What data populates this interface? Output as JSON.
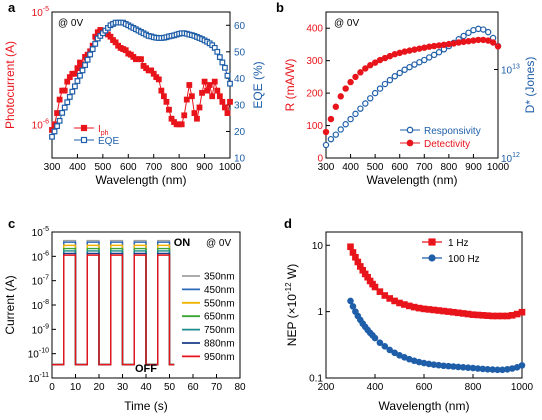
{
  "chart_data": [
    {
      "panel": "a",
      "type": "line",
      "annotation": "@ 0V",
      "xlabel": "Wavelength (nm)",
      "ylabel_left": "Photocurrent (A)",
      "ylabel_right": "EQE (%)",
      "xlim": [
        300,
        1000
      ],
      "xticks": [
        "300",
        "400",
        "500",
        "600",
        "700",
        "800",
        "900",
        "1000"
      ],
      "ylim_left_log": [
        -6.3,
        -5
      ],
      "yticks_left": [
        {
          "exp": "-5",
          "label_base": "10"
        },
        {
          "exp": "-6",
          "label_base": "10"
        }
      ],
      "ylim_right": [
        10,
        65
      ],
      "yticks_right": [
        "10",
        "20",
        "30",
        "40",
        "50",
        "60"
      ],
      "legend": [
        "I",
        "EQE"
      ],
      "legend_sub": "ph",
      "series": [
        {
          "name": "Iph",
          "color": "#e8141b",
          "marker": "filled-square",
          "axis": "left",
          "x": [
            300,
            310,
            320,
            330,
            340,
            350,
            360,
            370,
            380,
            390,
            400,
            410,
            420,
            430,
            440,
            450,
            460,
            470,
            480,
            490,
            500,
            510,
            520,
            530,
            540,
            550,
            560,
            570,
            580,
            590,
            600,
            610,
            620,
            630,
            640,
            650,
            660,
            670,
            680,
            690,
            700,
            710,
            720,
            730,
            740,
            750,
            760,
            770,
            780,
            790,
            800,
            810,
            820,
            830,
            840,
            850,
            860,
            870,
            880,
            890,
            900,
            910,
            920,
            930,
            940,
            950,
            960,
            970,
            980,
            990,
            1000
          ],
          "y": [
            -6.05,
            -6.0,
            -5.9,
            -5.78,
            -5.7,
            -5.7,
            -5.62,
            -5.58,
            -5.55,
            -5.55,
            -5.5,
            -5.45,
            -5.48,
            -5.4,
            -5.38,
            -5.35,
            -5.3,
            -5.22,
            -5.18,
            -5.16,
            -5.17,
            -5.18,
            -5.2,
            -5.22,
            -5.25,
            -5.27,
            -5.3,
            -5.32,
            -5.33,
            -5.34,
            -5.37,
            -5.38,
            -5.4,
            -5.42,
            -5.42,
            -5.42,
            -5.48,
            -5.5,
            -5.52,
            -5.52,
            -5.55,
            -5.58,
            -5.6,
            -5.7,
            -5.75,
            -5.8,
            -5.87,
            -5.95,
            -5.98,
            -6.0,
            -6.0,
            -6.0,
            -5.92,
            -5.78,
            -5.65,
            -5.75,
            -5.9,
            -5.95,
            -5.85,
            -5.72,
            -5.62,
            -5.7,
            -5.65,
            -5.75,
            -5.62,
            -5.7,
            -5.75,
            -5.8,
            -5.85,
            -5.9,
            -5.8
          ]
        },
        {
          "name": "EQE",
          "color": "#1f5ea8",
          "marker": "open-square",
          "axis": "right",
          "x": [
            300,
            310,
            320,
            330,
            340,
            350,
            360,
            370,
            380,
            390,
            400,
            410,
            420,
            430,
            440,
            450,
            460,
            470,
            480,
            490,
            500,
            510,
            520,
            530,
            540,
            550,
            560,
            570,
            580,
            590,
            600,
            610,
            620,
            630,
            640,
            650,
            660,
            670,
            680,
            690,
            700,
            710,
            720,
            730,
            740,
            750,
            760,
            770,
            780,
            790,
            800,
            810,
            820,
            830,
            840,
            850,
            860,
            870,
            880,
            890,
            900,
            910,
            920,
            930,
            940,
            950,
            960,
            970,
            980,
            990,
            1000
          ],
          "y": [
            18,
            20,
            22,
            24,
            27,
            29,
            31,
            33,
            35,
            37,
            39,
            41,
            43,
            45,
            47,
            49,
            51,
            53,
            55,
            56,
            57,
            58,
            59,
            60,
            60.5,
            61,
            61,
            61,
            61,
            60.5,
            60,
            59.5,
            59,
            58.5,
            58,
            57.5,
            57,
            56.5,
            56,
            55.8,
            55.5,
            55.3,
            55.2,
            55.2,
            55.3,
            55.5,
            55.8,
            56,
            56.2,
            56.5,
            56.8,
            57,
            57,
            56.8,
            56.5,
            56.3,
            56,
            55.6,
            55.2,
            54.8,
            54.3,
            53.8,
            53.2,
            52.5,
            51.5,
            50,
            48,
            46,
            44,
            41,
            38
          ]
        }
      ]
    },
    {
      "panel": "b",
      "type": "line",
      "annotation": "@ 0V",
      "xlabel": "Wavelength (nm)",
      "ylabel_left": "R (mA/W)",
      "ylabel_right": "D* (Jones)",
      "xlim": [
        300,
        1000
      ],
      "xticks": [
        "300",
        "400",
        "500",
        "600",
        "700",
        "800",
        "900",
        "1000"
      ],
      "ylim_left": [
        0,
        450
      ],
      "yticks_left": [
        "0",
        "100",
        "200",
        "300",
        "400"
      ],
      "ylim_right_log": [
        12,
        13.65
      ],
      "yticks_right": [
        {
          "exp": "13",
          "label_base": "10"
        },
        {
          "exp": "12",
          "label_base": "10"
        }
      ],
      "legend": [
        "Responsivity",
        "Detectivity"
      ],
      "series": [
        {
          "name": "Responsivity",
          "color": "#1f5ea8",
          "marker": "open-circle",
          "axis": "left",
          "x": [
            300,
            320,
            340,
            360,
            380,
            400,
            420,
            440,
            460,
            480,
            500,
            520,
            540,
            560,
            580,
            600,
            620,
            640,
            660,
            680,
            700,
            720,
            740,
            760,
            780,
            800,
            820,
            840,
            860,
            880,
            900,
            920,
            940,
            960,
            980,
            1000
          ],
          "y": [
            40,
            58,
            72,
            88,
            104,
            120,
            136,
            152,
            168,
            184,
            200,
            214,
            228,
            240,
            252,
            262,
            272,
            280,
            288,
            295,
            302,
            310,
            318,
            326,
            335,
            345,
            355,
            366,
            376,
            386,
            394,
            398,
            396,
            388,
            370,
            345
          ]
        },
        {
          "name": "Detectivity",
          "color": "#e8141b",
          "marker": "filled-circle",
          "axis": "left",
          "x": [
            300,
            320,
            340,
            360,
            380,
            400,
            420,
            440,
            460,
            480,
            500,
            520,
            540,
            560,
            580,
            600,
            620,
            640,
            660,
            680,
            700,
            720,
            740,
            760,
            780,
            800,
            820,
            840,
            860,
            880,
            900,
            920,
            940,
            960,
            980,
            1000
          ],
          "y": [
            80,
            120,
            158,
            190,
            214,
            234,
            250,
            264,
            276,
            286,
            294,
            302,
            308,
            314,
            320,
            324,
            328,
            331,
            334,
            337,
            340,
            343,
            345,
            347,
            349,
            351,
            353,
            356,
            358,
            360,
            362,
            364,
            364,
            362,
            356,
            344
          ]
        }
      ]
    },
    {
      "panel": "c",
      "type": "line",
      "annotation": "@ 0V",
      "label_on": "ON",
      "label_off": "OFF",
      "xlabel": "Time (s)",
      "ylabel": "Current (A)",
      "xlim": [
        0,
        80
      ],
      "xticks": [
        "0",
        "10",
        "20",
        "30",
        "40",
        "50",
        "60",
        "70",
        "80"
      ],
      "ylim_log": [
        -11,
        -5
      ],
      "yticks": [
        {
          "exp": "-5",
          "label_base": "10"
        },
        {
          "exp": "-6",
          "label_base": "10"
        },
        {
          "exp": "-7",
          "label_base": "10"
        },
        {
          "exp": "-8",
          "label_base": "10"
        },
        {
          "exp": "-9",
          "label_base": "10"
        },
        {
          "exp": "-10",
          "label_base": "10"
        },
        {
          "exp": "-11",
          "label_base": "10"
        }
      ],
      "pulses": {
        "on_starts": [
          5,
          15,
          25,
          35,
          45
        ],
        "on_duration": 5,
        "end": 52,
        "off_level_log": -10.45
      },
      "series": [
        {
          "name": "350nm",
          "color": "#a0a0a0",
          "on_level_log": -5.35
        },
        {
          "name": "450nm",
          "color": "#2b68b8",
          "on_level_log": -5.42
        },
        {
          "name": "550nm",
          "color": "#f2b400",
          "on_level_log": -5.55
        },
        {
          "name": "650nm",
          "color": "#3aa535",
          "on_level_log": -5.68
        },
        {
          "name": "750nm",
          "color": "#1d8c8c",
          "on_level_log": -5.78
        },
        {
          "name": "880nm",
          "color": "#1a3c8a",
          "on_level_log": -5.88
        },
        {
          "name": "950nm",
          "color": "#e8141b",
          "on_level_log": -5.95
        }
      ]
    },
    {
      "panel": "d",
      "type": "line",
      "xlabel": "Wavelength (nm)",
      "ylabel_base": "NEP (×10",
      "ylabel_exp": "-12",
      "ylabel_tail": " W)",
      "xlim": [
        200,
        1000
      ],
      "xticks": [
        "200",
        "400",
        "600",
        "800",
        "1000"
      ],
      "ylim_log": [
        -1,
        1.2
      ],
      "yticks": [
        "10",
        "1",
        "0.1"
      ],
      "series": [
        {
          "name": "1 Hz",
          "color": "#e8141b",
          "marker": "filled-square",
          "x": [
            300,
            310,
            320,
            330,
            340,
            350,
            360,
            370,
            380,
            390,
            400,
            420,
            440,
            460,
            480,
            500,
            520,
            540,
            560,
            580,
            600,
            620,
            640,
            660,
            680,
            700,
            720,
            740,
            760,
            780,
            800,
            820,
            840,
            860,
            880,
            900,
            920,
            940,
            960,
            980,
            1000
          ],
          "y": [
            9.5,
            7.8,
            6.6,
            5.6,
            4.8,
            4.2,
            3.7,
            3.3,
            2.9,
            2.6,
            2.35,
            2.0,
            1.75,
            1.58,
            1.45,
            1.35,
            1.28,
            1.22,
            1.17,
            1.13,
            1.1,
            1.08,
            1.06,
            1.04,
            1.02,
            1.0,
            0.98,
            0.96,
            0.94,
            0.92,
            0.9,
            0.89,
            0.88,
            0.87,
            0.86,
            0.86,
            0.86,
            0.86,
            0.88,
            0.92,
            0.98
          ]
        },
        {
          "name": "100 Hz",
          "color": "#1f5ea8",
          "marker": "filled-circle",
          "x": [
            300,
            310,
            320,
            330,
            340,
            350,
            360,
            370,
            380,
            390,
            400,
            420,
            440,
            460,
            480,
            500,
            520,
            540,
            560,
            580,
            600,
            620,
            640,
            660,
            680,
            700,
            720,
            740,
            760,
            780,
            800,
            820,
            840,
            860,
            880,
            900,
            920,
            940,
            960,
            980,
            1000
          ],
          "y": [
            1.45,
            1.2,
            1.0,
            0.86,
            0.75,
            0.66,
            0.59,
            0.53,
            0.48,
            0.44,
            0.4,
            0.34,
            0.3,
            0.265,
            0.24,
            0.22,
            0.205,
            0.192,
            0.182,
            0.174,
            0.168,
            0.163,
            0.159,
            0.156,
            0.153,
            0.151,
            0.149,
            0.147,
            0.145,
            0.143,
            0.141,
            0.139,
            0.137,
            0.135,
            0.134,
            0.133,
            0.133,
            0.135,
            0.139,
            0.145,
            0.155
          ]
        }
      ]
    }
  ],
  "panel_labels": [
    "a",
    "b",
    "c",
    "d"
  ]
}
